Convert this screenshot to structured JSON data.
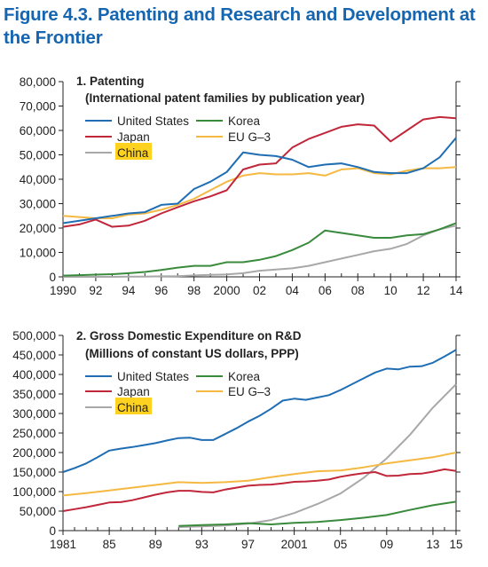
{
  "figure_title": "Figure 4.3. Patenting and Research and Development at the Frontier",
  "colors": {
    "United States": "#1f6eb4",
    "Japan": "#c0273a",
    "Korea": "#3a8a3c",
    "EU G–3": "#f5b942",
    "China": "#a8a8a8",
    "highlight": "#ffd21f"
  },
  "chart_data": [
    {
      "type": "line",
      "title": "1. Patenting",
      "subtitle": "(International patent families by publication year)",
      "xlim": [
        1990,
        2014
      ],
      "ylim": [
        0,
        80000
      ],
      "x_ticks": [
        1990,
        1992,
        1994,
        1996,
        1998,
        2000,
        2002,
        2004,
        2006,
        2008,
        2010,
        2012,
        2014
      ],
      "x_tick_labels": [
        "1990",
        "92",
        "94",
        "96",
        "98",
        "2000",
        "02",
        "04",
        "06",
        "08",
        "10",
        "12",
        "14"
      ],
      "y_ticks": [
        0,
        10000,
        20000,
        30000,
        40000,
        50000,
        60000,
        70000,
        80000
      ],
      "y_tick_labels": [
        "0",
        "10,000",
        "20,000",
        "30,000",
        "40,000",
        "50,000",
        "60,000",
        "70,000",
        "80,000"
      ],
      "legend_placement": "top-left",
      "highlighted_series": "China",
      "series": [
        {
          "name": "United States",
          "x": [
            1990,
            1991,
            1992,
            1993,
            1994,
            1995,
            1996,
            1997,
            1998,
            1999,
            2000,
            2001,
            2002,
            2003,
            2004,
            2005,
            2006,
            2007,
            2008,
            2009,
            2010,
            2011,
            2012,
            2013,
            2014
          ],
          "values": [
            22000,
            23000,
            24000,
            25000,
            26000,
            26500,
            29500,
            30000,
            36000,
            39000,
            43000,
            51000,
            50000,
            49500,
            48000,
            45000,
            46000,
            46500,
            45000,
            43000,
            42500,
            42500,
            44500,
            49000,
            57000
          ]
        },
        {
          "name": "Japan",
          "x": [
            1990,
            1991,
            1992,
            1993,
            1994,
            1995,
            1996,
            1997,
            1998,
            1999,
            2000,
            2001,
            2002,
            2003,
            2004,
            2005,
            2006,
            2007,
            2008,
            2009,
            2010,
            2011,
            2012,
            2013,
            2014
          ],
          "values": [
            20500,
            21500,
            23500,
            20500,
            21000,
            23000,
            26000,
            28500,
            31000,
            33000,
            35500,
            44000,
            46000,
            46500,
            53000,
            56500,
            59000,
            61500,
            62500,
            62000,
            55500,
            60000,
            64500,
            65500,
            65000
          ]
        },
        {
          "name": "Korea",
          "x": [
            1990,
            1991,
            1992,
            1993,
            1994,
            1995,
            1996,
            1997,
            1998,
            1999,
            2000,
            2001,
            2002,
            2003,
            2004,
            2005,
            2006,
            2007,
            2008,
            2009,
            2010,
            2011,
            2012,
            2013,
            2014
          ],
          "values": [
            500,
            700,
            900,
            1100,
            1500,
            2000,
            2800,
            3800,
            4500,
            4500,
            6000,
            6000,
            7000,
            8500,
            11000,
            14000,
            19000,
            18000,
            17000,
            16000,
            16000,
            17000,
            17500,
            19500,
            22000
          ]
        },
        {
          "name": "EU G–3",
          "x": [
            1990,
            1991,
            1992,
            1993,
            1994,
            1995,
            1996,
            1997,
            1998,
            1999,
            2000,
            2001,
            2002,
            2003,
            2004,
            2005,
            2006,
            2007,
            2008,
            2009,
            2010,
            2011,
            2012,
            2013,
            2014
          ],
          "values": [
            25000,
            24500,
            24000,
            24000,
            25500,
            26000,
            27500,
            29500,
            32000,
            35500,
            39000,
            41500,
            42500,
            42000,
            42000,
            42500,
            41500,
            44000,
            44500,
            42500,
            42000,
            43500,
            44500,
            44500,
            45000
          ]
        },
        {
          "name": "China",
          "x": [
            1990,
            1991,
            1992,
            1993,
            1994,
            1995,
            1996,
            1997,
            1998,
            1999,
            2000,
            2001,
            2002,
            2003,
            2004,
            2005,
            2006,
            2007,
            2008,
            2009,
            2010,
            2011,
            2012,
            2013,
            2014
          ],
          "values": [
            0,
            0,
            0,
            0,
            100,
            100,
            200,
            300,
            600,
            800,
            1000,
            1500,
            2500,
            3000,
            3500,
            4500,
            6000,
            7500,
            9000,
            10500,
            11500,
            13500,
            17000,
            19500,
            21000
          ]
        }
      ]
    },
    {
      "type": "line",
      "title": "2. Gross Domestic Expenditure on R&D",
      "subtitle": "(Millions of constant US dollars, PPP)",
      "xlim": [
        1981,
        2015
      ],
      "ylim": [
        0,
        500000
      ],
      "x_ticks": [
        1981,
        1985,
        1989,
        1993,
        1997,
        2001,
        2005,
        2009,
        2013,
        2015
      ],
      "x_tick_labels": [
        "1981",
        "85",
        "89",
        "93",
        "97",
        "2001",
        "05",
        "09",
        "13",
        "15"
      ],
      "y_ticks": [
        0,
        50000,
        100000,
        150000,
        200000,
        250000,
        300000,
        350000,
        400000,
        450000,
        500000
      ],
      "y_tick_labels": [
        "0",
        "50,000",
        "100,000",
        "150,000",
        "200,000",
        "250,000",
        "300,000",
        "350,000",
        "400,000",
        "450,000",
        "500,000"
      ],
      "legend_placement": "top-left",
      "highlighted_series": "China",
      "series": [
        {
          "name": "United States",
          "x": [
            1981,
            1982,
            1983,
            1984,
            1985,
            1986,
            1987,
            1988,
            1989,
            1990,
            1991,
            1992,
            1993,
            1994,
            1995,
            1996,
            1997,
            1998,
            1999,
            2000,
            2001,
            2002,
            2003,
            2004,
            2005,
            2006,
            2007,
            2008,
            2009,
            2010,
            2011,
            2012,
            2013,
            2014,
            2015
          ],
          "values": [
            150000,
            160000,
            172000,
            188000,
            205000,
            210000,
            214000,
            219000,
            224000,
            231000,
            237000,
            238000,
            232000,
            232000,
            247000,
            262000,
            279000,
            294000,
            312000,
            333000,
            338000,
            335000,
            341000,
            347000,
            360000,
            375000,
            390000,
            405000,
            415000,
            413000,
            420000,
            421000,
            430000,
            446000,
            463000
          ]
        },
        {
          "name": "Japan",
          "x": [
            1981,
            1982,
            1983,
            1984,
            1985,
            1986,
            1987,
            1988,
            1989,
            1990,
            1991,
            1992,
            1993,
            1994,
            1995,
            1996,
            1997,
            1998,
            1999,
            2000,
            2001,
            2002,
            2003,
            2004,
            2005,
            2006,
            2007,
            2008,
            2009,
            2010,
            2011,
            2012,
            2013,
            2014,
            2015
          ],
          "values": [
            50000,
            55000,
            60000,
            66000,
            72000,
            73000,
            78000,
            85000,
            92000,
            98000,
            102000,
            102000,
            99000,
            98000,
            105000,
            110000,
            115000,
            117000,
            118000,
            121000,
            125000,
            126000,
            128000,
            131000,
            138000,
            143000,
            147000,
            150000,
            140000,
            141000,
            145000,
            146000,
            151000,
            157000,
            153000
          ]
        },
        {
          "name": "Korea",
          "x": [
            1991,
            1993,
            1995,
            1997,
            1999,
            2001,
            2003,
            2005,
            2007,
            2009,
            2011,
            2013,
            2015
          ],
          "values": [
            12000,
            14000,
            16000,
            19000,
            16000,
            20000,
            22000,
            27000,
            33000,
            40000,
            53000,
            65000,
            74000
          ]
        },
        {
          "name": "EU G–3",
          "x": [
            1981,
            1983,
            1985,
            1987,
            1989,
            1991,
            1993,
            1995,
            1997,
            1999,
            2001,
            2003,
            2005,
            2007,
            2009,
            2011,
            2013,
            2015
          ],
          "values": [
            90000,
            96000,
            103000,
            110000,
            117000,
            124000,
            122000,
            124000,
            128000,
            137000,
            145000,
            152000,
            154000,
            162000,
            172000,
            180000,
            188000,
            200000
          ]
        },
        {
          "name": "China",
          "x": [
            1991,
            1993,
            1995,
            1997,
            1999,
            2001,
            2003,
            2005,
            2007,
            2009,
            2011,
            2013,
            2015
          ],
          "values": [
            9000,
            11000,
            13000,
            18000,
            27000,
            45000,
            68000,
            95000,
            135000,
            185000,
            245000,
            315000,
            375000
          ]
        }
      ]
    }
  ],
  "legend_order": [
    "United States",
    "Japan",
    "China",
    "Korea",
    "EU G–3"
  ]
}
